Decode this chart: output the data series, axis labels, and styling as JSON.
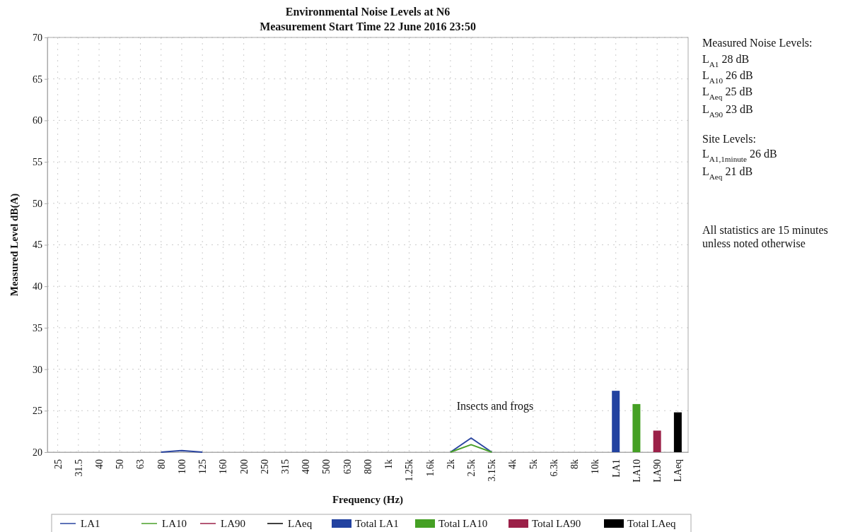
{
  "chart_data": {
    "type": "bar",
    "title": "Environmental Noise Levels at N6",
    "subtitle": "Measurement Start Time 22 June 2016 23:50",
    "xlabel": "Frequency (Hz)",
    "ylabel": "Measured Level dB(A)",
    "categories": [
      "25",
      "31.5",
      "40",
      "50",
      "63",
      "80",
      "100",
      "125",
      "160",
      "200",
      "250",
      "315",
      "400",
      "500",
      "630",
      "800",
      "1k",
      "1.25k",
      "1.6k",
      "2k",
      "2.5k",
      "3.15k",
      "4k",
      "5k",
      "6.3k",
      "8k",
      "10k",
      "LA1",
      "LA10",
      "LA90",
      "LAeq"
    ],
    "ylim": [
      20,
      70
    ],
    "yticks": [
      20,
      25,
      30,
      35,
      40,
      45,
      50,
      55,
      60,
      65,
      70
    ],
    "grid": true,
    "legend": "bottom",
    "series": [
      {
        "name": "LA1",
        "type": "line",
        "color": "#2a45a0",
        "values": [
          null,
          null,
          null,
          null,
          null,
          20,
          20.2,
          20,
          null,
          null,
          null,
          null,
          null,
          null,
          null,
          null,
          null,
          null,
          null,
          20,
          21.7,
          20,
          null,
          null,
          null,
          null,
          null,
          null,
          null,
          null,
          null
        ]
      },
      {
        "name": "LA10",
        "type": "line",
        "color": "#4aa02a",
        "values": [
          null,
          null,
          null,
          null,
          null,
          null,
          null,
          null,
          null,
          null,
          null,
          null,
          null,
          null,
          null,
          null,
          null,
          null,
          null,
          20,
          20.9,
          20,
          null,
          null,
          null,
          null,
          null,
          null,
          null,
          null,
          null
        ]
      },
      {
        "name": "LA90",
        "type": "line",
        "color": "#9b2048",
        "values": [
          null,
          null,
          null,
          null,
          null,
          null,
          null,
          null,
          null,
          null,
          null,
          null,
          null,
          null,
          null,
          null,
          null,
          null,
          null,
          null,
          null,
          null,
          null,
          null,
          null,
          null,
          null,
          null,
          null,
          null,
          null
        ]
      },
      {
        "name": "LAeq",
        "type": "line",
        "color": "#000000",
        "values": [
          null,
          null,
          null,
          null,
          null,
          null,
          null,
          null,
          null,
          null,
          null,
          null,
          null,
          null,
          null,
          null,
          null,
          null,
          null,
          null,
          null,
          null,
          null,
          null,
          null,
          null,
          null,
          null,
          null,
          null,
          null
        ]
      },
      {
        "name": "Total LA1",
        "color": "#2242a0",
        "values": [
          null,
          null,
          null,
          null,
          null,
          null,
          null,
          null,
          null,
          null,
          null,
          null,
          null,
          null,
          null,
          null,
          null,
          null,
          null,
          null,
          null,
          null,
          null,
          null,
          null,
          null,
          null,
          27.4,
          null,
          null,
          null
        ]
      },
      {
        "name": "Total LA10",
        "color": "#45a024",
        "values": [
          null,
          null,
          null,
          null,
          null,
          null,
          null,
          null,
          null,
          null,
          null,
          null,
          null,
          null,
          null,
          null,
          null,
          null,
          null,
          null,
          null,
          null,
          null,
          null,
          null,
          null,
          null,
          null,
          25.8,
          null,
          null
        ]
      },
      {
        "name": "Total LA90",
        "color": "#9b2048",
        "values": [
          null,
          null,
          null,
          null,
          null,
          null,
          null,
          null,
          null,
          null,
          null,
          null,
          null,
          null,
          null,
          null,
          null,
          null,
          null,
          null,
          null,
          null,
          null,
          null,
          null,
          null,
          null,
          null,
          null,
          22.6,
          null
        ]
      },
      {
        "name": "Total LAeq",
        "color": "#000000",
        "values": [
          null,
          null,
          null,
          null,
          null,
          null,
          null,
          null,
          null,
          null,
          null,
          null,
          null,
          null,
          null,
          null,
          null,
          null,
          null,
          null,
          null,
          null,
          null,
          null,
          null,
          null,
          null,
          null,
          null,
          null,
          24.8
        ]
      }
    ],
    "annotations": [
      "Insects and frogs",
      "Measured Noise Levels:",
      "L$_{A1}$ 28 dB",
      "L$_{A10}$ 26 dB",
      "L$_{Aeq}$ 25 dB",
      "L$_{A90}$ 23 dB",
      "Site Levels:",
      "L$_{A1,1minute}$ 26 dB",
      "L$_{Aeq}$ 21 dB",
      "All statistics are 15 minutes",
      "unless noted otherwise"
    ]
  }
}
